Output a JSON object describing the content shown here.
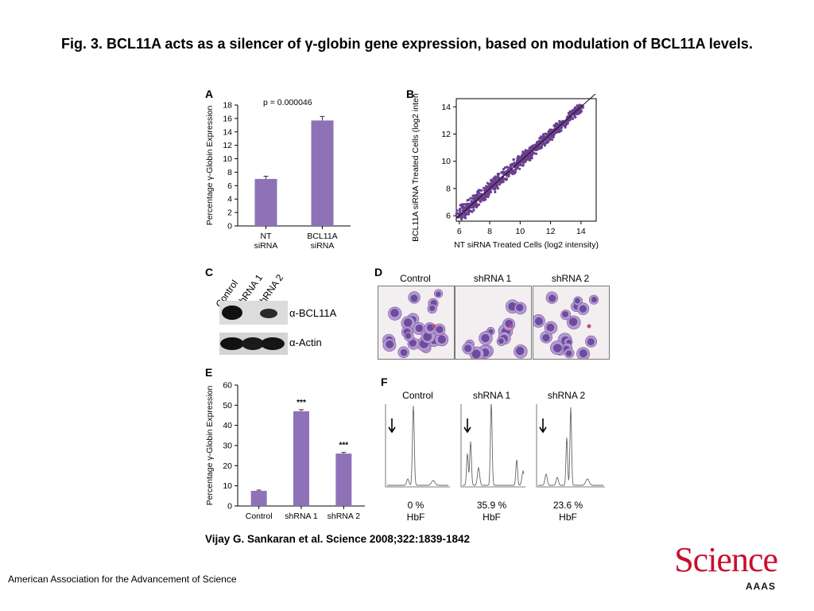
{
  "title": "Fig. 3. BCL11A acts as a silencer of γ-globin gene expression, based on modulation of BCL11A levels.",
  "panels": {
    "A": "A",
    "B": "B",
    "C": "C",
    "D": "D",
    "E": "E",
    "F": "F"
  },
  "chart_data": [
    {
      "type": "bar",
      "panel": "A",
      "categories": [
        "NT siRNA",
        "BCL11A siRNA"
      ],
      "values": [
        7.0,
        15.7
      ],
      "errors": [
        0.4,
        0.6
      ],
      "ylabel": "Percentage γ-Globin Expression",
      "ylim": [
        0,
        18
      ],
      "yticks": [
        0,
        2,
        4,
        6,
        8,
        10,
        12,
        14,
        16,
        18
      ],
      "annotation": "p = 0.000046",
      "color": "#8e72b8"
    },
    {
      "type": "scatter",
      "panel": "B",
      "xlabel": "NT siRNA Treated Cells (log2 intensity)",
      "ylabel": "BCL11A siRNA Treated Cells (log2 intensity)",
      "xlim": [
        5.8,
        15
      ],
      "ylim": [
        5.6,
        14.6
      ],
      "xticks": [
        6,
        8,
        10,
        12,
        14
      ],
      "yticks": [
        6,
        8,
        10,
        12,
        14
      ],
      "trend": "points lie along the identity line from about 6 to 14",
      "color": "#6b3f8f"
    },
    {
      "type": "bar",
      "panel": "E",
      "categories": [
        "Control",
        "shRNA 1",
        "shRNA 2"
      ],
      "values": [
        7.5,
        47,
        26
      ],
      "errors": [
        0.4,
        0.8,
        0.6
      ],
      "significance": [
        "",
        "***",
        "***"
      ],
      "ylabel": "Percentage γ-Globin Expression",
      "ylim": [
        0,
        60
      ],
      "yticks": [
        0,
        10,
        20,
        30,
        40,
        50,
        60
      ],
      "color": "#8e72b8"
    }
  ],
  "blot": {
    "lanes": [
      "Control",
      "shRNA 1",
      "shRNA 2"
    ],
    "bands": [
      "α-BCL11A",
      "α-Actin"
    ]
  },
  "cytospin": {
    "labels": [
      "Control",
      "shRNA 1",
      "shRNA 2"
    ]
  },
  "hplc": {
    "labels": [
      "Control",
      "shRNA 1",
      "shRNA 2"
    ],
    "hbf": [
      "0 %",
      "35.9 %",
      "23.6 %"
    ],
    "hbf_label": "HbF"
  },
  "citation": "Vijay G. Sankaran et al. Science 2008;322:1839-1842",
  "footer": "American Association for the Advancement of Science",
  "logo": {
    "word": "Science",
    "sub": "AAAS"
  }
}
